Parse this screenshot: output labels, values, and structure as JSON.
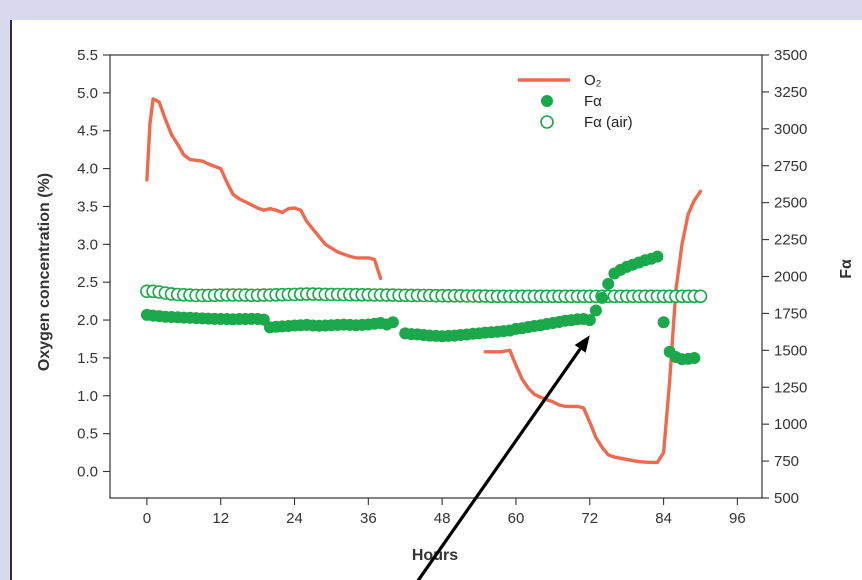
{
  "chart_data": {
    "type": "line",
    "title": "",
    "xlabel": "Hours",
    "ylabel": "Oxygen concentration (%)",
    "y2label": "Fα",
    "xlim": [
      -6,
      100
    ],
    "ylim": [
      -0.35,
      5.5
    ],
    "y2lim": [
      500,
      3500
    ],
    "xticks": [
      0,
      12,
      24,
      36,
      48,
      60,
      72,
      84,
      96
    ],
    "yticks": [
      0.0,
      0.5,
      1.0,
      1.5,
      2.0,
      2.5,
      3.0,
      3.5,
      4.0,
      4.5,
      5.0,
      5.5
    ],
    "y2ticks": [
      500,
      750,
      1000,
      1250,
      1500,
      1750,
      2000,
      2250,
      2500,
      2750,
      3000,
      3250,
      3500
    ],
    "grid": false,
    "legend_position": "top-right",
    "legend": [
      {
        "key": "o2",
        "label": "O₂",
        "marker": "line"
      },
      {
        "key": "fa",
        "label": "Fα",
        "marker": "filled-circle"
      },
      {
        "key": "fa_air",
        "label": "Fα (air)",
        "marker": "open-circle"
      }
    ],
    "series": [
      {
        "name": "O₂",
        "axis": "left",
        "color": "#ee6a4f",
        "style": "line",
        "segments": [
          [
            [
              0,
              3.85
            ],
            [
              0.5,
              4.6
            ],
            [
              1,
              4.92
            ],
            [
              2,
              4.88
            ],
            [
              3,
              4.65
            ],
            [
              4,
              4.45
            ],
            [
              5,
              4.32
            ],
            [
              6,
              4.18
            ],
            [
              7,
              4.12
            ],
            [
              9,
              4.1
            ],
            [
              10,
              4.06
            ],
            [
              12,
              4.0
            ],
            [
              13,
              3.82
            ],
            [
              14,
              3.66
            ],
            [
              15,
              3.6
            ],
            [
              17,
              3.52
            ],
            [
              18,
              3.48
            ],
            [
              19,
              3.45
            ],
            [
              20,
              3.47
            ],
            [
              21,
              3.45
            ],
            [
              22,
              3.42
            ],
            [
              23,
              3.47
            ],
            [
              24,
              3.48
            ],
            [
              25,
              3.45
            ],
            [
              26,
              3.3
            ],
            [
              27,
              3.2
            ],
            [
              28,
              3.1
            ],
            [
              29,
              3.0
            ],
            [
              30,
              2.95
            ],
            [
              31,
              2.9
            ],
            [
              32,
              2.87
            ],
            [
              33,
              2.84
            ],
            [
              34,
              2.82
            ],
            [
              35,
              2.82
            ],
            [
              36,
              2.82
            ],
            [
              37,
              2.8
            ],
            [
              38,
              2.55
            ]
          ],
          [
            [
              55,
              1.58
            ],
            [
              57.5,
              1.58
            ],
            [
              59,
              1.6
            ],
            [
              60,
              1.4
            ],
            [
              61,
              1.22
            ],
            [
              62,
              1.1
            ],
            [
              63,
              1.02
            ],
            [
              64,
              0.98
            ],
            [
              65,
              0.95
            ],
            [
              66,
              0.92
            ],
            [
              67,
              0.88
            ],
            [
              68,
              0.86
            ],
            [
              69,
              0.86
            ],
            [
              70,
              0.86
            ],
            [
              71,
              0.84
            ],
            [
              72,
              0.65
            ],
            [
              73,
              0.45
            ],
            [
              74,
              0.32
            ],
            [
              75,
              0.22
            ],
            [
              76,
              0.19
            ],
            [
              78,
              0.16
            ],
            [
              80,
              0.13
            ],
            [
              82,
              0.12
            ],
            [
              83,
              0.12
            ],
            [
              84,
              0.25
            ],
            [
              85,
              1.2
            ],
            [
              86,
              2.4
            ],
            [
              87,
              3.0
            ],
            [
              88,
              3.4
            ],
            [
              89,
              3.58
            ],
            [
              90,
              3.7
            ]
          ]
        ]
      },
      {
        "name": "Fα",
        "axis": "right",
        "color": "#1aa84a",
        "style": "filled-circle",
        "points": [
          [
            0,
            1740
          ],
          [
            1,
            1735
          ],
          [
            2,
            1732
          ],
          [
            3,
            1728
          ],
          [
            4,
            1726
          ],
          [
            5,
            1724
          ],
          [
            6,
            1722
          ],
          [
            7,
            1720
          ],
          [
            8,
            1718
          ],
          [
            9,
            1716
          ],
          [
            10,
            1715
          ],
          [
            11,
            1713
          ],
          [
            12,
            1712
          ],
          [
            13,
            1712
          ],
          [
            14,
            1711
          ],
          [
            15,
            1712
          ],
          [
            16,
            1712
          ],
          [
            17,
            1713
          ],
          [
            18,
            1712
          ],
          [
            19,
            1708
          ],
          [
            20,
            1655
          ],
          [
            21,
            1660
          ],
          [
            22,
            1662
          ],
          [
            23,
            1665
          ],
          [
            24,
            1668
          ],
          [
            25,
            1670
          ],
          [
            26,
            1672
          ],
          [
            27,
            1668
          ],
          [
            28,
            1666
          ],
          [
            29,
            1668
          ],
          [
            30,
            1670
          ],
          [
            31,
            1672
          ],
          [
            32,
            1674
          ],
          [
            33,
            1672
          ],
          [
            34,
            1670
          ],
          [
            35,
            1672
          ],
          [
            36,
            1675
          ],
          [
            37,
            1680
          ],
          [
            38,
            1685
          ],
          [
            39,
            1675
          ],
          [
            40,
            1690
          ],
          [
            42,
            1615
          ],
          [
            43,
            1610
          ],
          [
            44,
            1608
          ],
          [
            45,
            1604
          ],
          [
            46,
            1600
          ],
          [
            47,
            1598
          ],
          [
            48,
            1596
          ],
          [
            49,
            1598
          ],
          [
            50,
            1600
          ],
          [
            51,
            1604
          ],
          [
            52,
            1607
          ],
          [
            53,
            1612
          ],
          [
            54,
            1615
          ],
          [
            55,
            1620
          ],
          [
            56,
            1622
          ],
          [
            57,
            1626
          ],
          [
            58,
            1630
          ],
          [
            59,
            1634
          ],
          [
            60,
            1645
          ],
          [
            61,
            1650
          ],
          [
            62,
            1658
          ],
          [
            63,
            1665
          ],
          [
            64,
            1670
          ],
          [
            65,
            1678
          ],
          [
            66,
            1685
          ],
          [
            67,
            1692
          ],
          [
            68,
            1700
          ],
          [
            69,
            1705
          ],
          [
            70,
            1710
          ],
          [
            71,
            1712
          ],
          [
            72,
            1705
          ],
          [
            73,
            1770
          ],
          [
            74,
            1855
          ],
          [
            75,
            1950
          ],
          [
            76,
            2020
          ],
          [
            77,
            2045
          ],
          [
            78,
            2065
          ],
          [
            79,
            2080
          ],
          [
            80,
            2095
          ],
          [
            81,
            2110
          ],
          [
            82,
            2120
          ],
          [
            83,
            2135
          ],
          [
            84,
            1690
          ],
          [
            85,
            1490
          ],
          [
            86,
            1455
          ],
          [
            87,
            1440
          ],
          [
            88,
            1442
          ],
          [
            89,
            1448
          ]
        ]
      },
      {
        "name": "Fα (air)",
        "axis": "right",
        "color": "#1aa84a",
        "style": "open-circle",
        "points": [
          [
            0,
            1900
          ],
          [
            1,
            1900
          ],
          [
            2,
            1895
          ],
          [
            3,
            1888
          ],
          [
            4,
            1882
          ],
          [
            5,
            1878
          ],
          [
            6,
            1876
          ],
          [
            7,
            1874
          ],
          [
            8,
            1872
          ],
          [
            9,
            1872
          ],
          [
            10,
            1872
          ],
          [
            11,
            1873
          ],
          [
            12,
            1874
          ],
          [
            13,
            1875
          ],
          [
            14,
            1875
          ],
          [
            15,
            1875
          ],
          [
            16,
            1874
          ],
          [
            17,
            1873
          ],
          [
            18,
            1873
          ],
          [
            19,
            1874
          ],
          [
            20,
            1875
          ],
          [
            21,
            1876
          ],
          [
            22,
            1877
          ],
          [
            23,
            1878
          ],
          [
            24,
            1879
          ],
          [
            25,
            1880
          ],
          [
            26,
            1881
          ],
          [
            27,
            1881
          ],
          [
            28,
            1880
          ],
          [
            29,
            1879
          ],
          [
            30,
            1879
          ],
          [
            31,
            1878
          ],
          [
            32,
            1878
          ],
          [
            33,
            1877
          ],
          [
            34,
            1877
          ],
          [
            35,
            1876
          ],
          [
            36,
            1876
          ],
          [
            37,
            1875
          ],
          [
            38,
            1875
          ],
          [
            39,
            1874
          ],
          [
            40,
            1874
          ],
          [
            41,
            1873
          ],
          [
            42,
            1873
          ],
          [
            43,
            1872
          ],
          [
            44,
            1872
          ],
          [
            45,
            1871
          ],
          [
            46,
            1871
          ],
          [
            47,
            1870
          ],
          [
            48,
            1870
          ],
          [
            49,
            1869
          ],
          [
            50,
            1869
          ],
          [
            51,
            1869
          ],
          [
            52,
            1868
          ],
          [
            53,
            1868
          ],
          [
            54,
            1867
          ],
          [
            55,
            1867
          ],
          [
            56,
            1866
          ],
          [
            57,
            1866
          ],
          [
            58,
            1866
          ],
          [
            59,
            1866
          ],
          [
            60,
            1866
          ],
          [
            61,
            1866
          ],
          [
            62,
            1866
          ],
          [
            63,
            1866
          ],
          [
            64,
            1866
          ],
          [
            65,
            1866
          ],
          [
            66,
            1866
          ],
          [
            67,
            1866
          ],
          [
            68,
            1866
          ],
          [
            69,
            1866
          ],
          [
            70,
            1866
          ],
          [
            71,
            1866
          ],
          [
            72,
            1866
          ],
          [
            73,
            1866
          ],
          [
            74,
            1866
          ],
          [
            75,
            1866
          ],
          [
            76,
            1866
          ],
          [
            77,
            1866
          ],
          [
            78,
            1866
          ],
          [
            79,
            1866
          ],
          [
            80,
            1866
          ],
          [
            81,
            1866
          ],
          [
            82,
            1866
          ],
          [
            83,
            1866
          ],
          [
            84,
            1866
          ],
          [
            85,
            1866
          ],
          [
            86,
            1866
          ],
          [
            87,
            1866
          ],
          [
            88,
            1866
          ],
          [
            89,
            1866
          ],
          [
            90,
            1866
          ]
        ]
      }
    ],
    "annotations": [
      {
        "type": "arrow",
        "color": "#000000",
        "from": [
          44,
          -1.45
        ],
        "to": [
          72,
          1.8
        ]
      }
    ]
  }
}
